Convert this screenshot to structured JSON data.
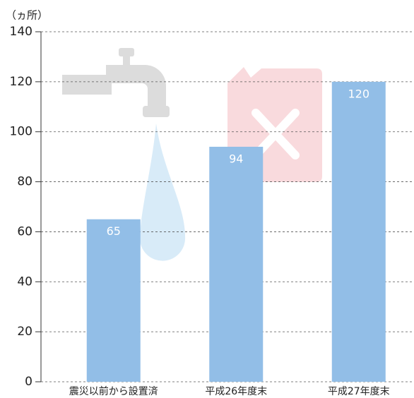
{
  "chart_data": {
    "type": "bar",
    "y_label": "（ヵ所）",
    "categories": [
      "震災以前から設置済",
      "平成26年度末",
      "平成27年度末"
    ],
    "values": [
      65,
      94,
      120
    ],
    "color": "#92bee7",
    "ylim": [
      0,
      140
    ],
    "yticks": [
      0,
      20,
      40,
      60,
      80,
      100,
      120,
      140
    ],
    "grid": true
  }
}
